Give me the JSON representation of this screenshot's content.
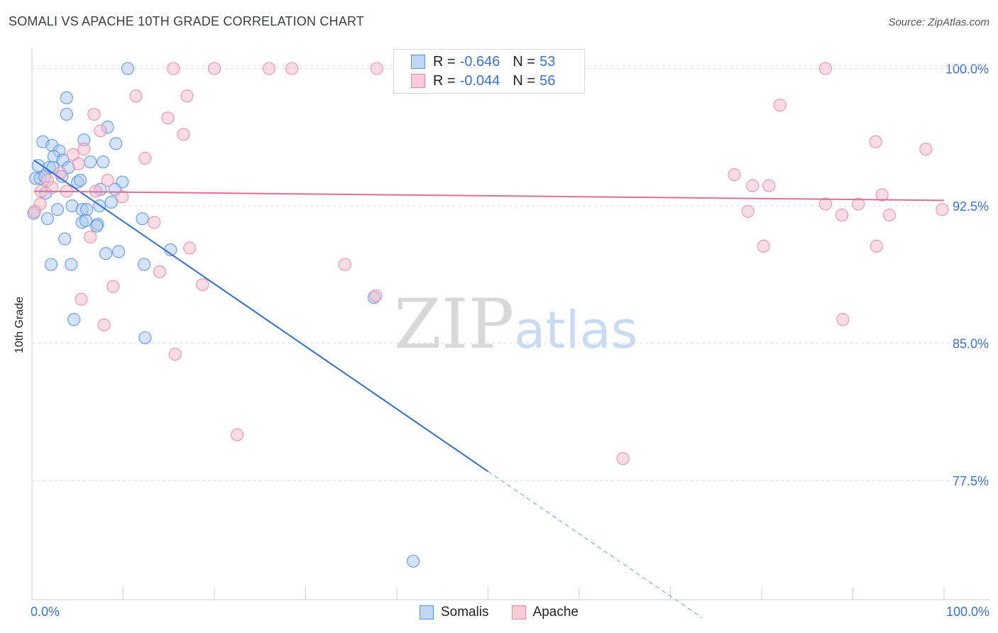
{
  "chart_data": {
    "type": "scatter",
    "title": "SOMALI VS APACHE 10TH GRADE CORRELATION CHART",
    "source": "Source: ZipAtlas.com",
    "xlabel": "",
    "ylabel": "10th Grade",
    "xlim": [
      0,
      100
    ],
    "ylim": [
      71.0,
      101.3
    ],
    "x_tick_labels": [
      "0.0%",
      "100.0%"
    ],
    "y_ticks": [
      {
        "value": 100.0,
        "label": "100.0%"
      },
      {
        "value": 92.5,
        "label": "92.5%"
      },
      {
        "value": 85.0,
        "label": "85.0%"
      },
      {
        "value": 77.5,
        "label": "77.5%"
      }
    ],
    "grid": true,
    "watermark": "ZIPatlas",
    "legend_position": "bottom-center",
    "stats": [
      {
        "r_label": "R =",
        "r_value": "-0.646",
        "n_label": "N =",
        "n_value": "53"
      },
      {
        "r_label": "R =",
        "r_value": "-0.044",
        "n_label": "N =",
        "n_value": "56"
      }
    ],
    "series": [
      {
        "name": "Somalis",
        "color": "#5b8fde",
        "fill": "#aac8f2",
        "trend": {
          "x0": 0.2,
          "y0": 95.0,
          "x1": 50,
          "y1": 78.0,
          "dash_to_x": 73.5,
          "dash_to_y": 70.0
        },
        "points": [
          [
            10.5,
            100.0
          ],
          [
            3.8,
            98.4
          ],
          [
            3.8,
            97.5
          ],
          [
            8.3,
            96.8
          ],
          [
            1.2,
            96.0
          ],
          [
            5.7,
            96.1
          ],
          [
            9.2,
            95.9
          ],
          [
            2.2,
            95.8
          ],
          [
            3.0,
            95.5
          ],
          [
            2.4,
            95.2
          ],
          [
            3.4,
            95.0
          ],
          [
            6.4,
            94.9
          ],
          [
            7.8,
            94.9
          ],
          [
            0.7,
            94.7
          ],
          [
            1.9,
            94.6
          ],
          [
            2.3,
            94.6
          ],
          [
            4.0,
            94.6
          ],
          [
            0.4,
            94.0
          ],
          [
            0.9,
            94.0
          ],
          [
            1.4,
            94.1
          ],
          [
            3.3,
            94.1
          ],
          [
            5.0,
            93.8
          ],
          [
            5.3,
            93.9
          ],
          [
            9.9,
            93.8
          ],
          [
            7.5,
            93.4
          ],
          [
            9.1,
            93.4
          ],
          [
            1.5,
            93.2
          ],
          [
            8.7,
            92.7
          ],
          [
            4.4,
            92.5
          ],
          [
            7.4,
            92.5
          ],
          [
            5.5,
            92.3
          ],
          [
            2.8,
            92.3
          ],
          [
            6.0,
            92.3
          ],
          [
            0.2,
            92.1
          ],
          [
            1.7,
            91.8
          ],
          [
            12.1,
            91.8
          ],
          [
            5.5,
            91.6
          ],
          [
            5.9,
            91.7
          ],
          [
            7.2,
            91.5
          ],
          [
            7.1,
            91.4
          ],
          [
            3.6,
            90.7
          ],
          [
            15.2,
            90.1
          ],
          [
            8.1,
            89.9
          ],
          [
            9.5,
            90.0
          ],
          [
            2.1,
            89.3
          ],
          [
            4.3,
            89.3
          ],
          [
            12.3,
            89.3
          ],
          [
            37.5,
            87.5
          ],
          [
            4.6,
            86.3
          ],
          [
            12.4,
            85.3
          ],
          [
            41.8,
            73.1
          ]
        ]
      },
      {
        "name": "Apache",
        "color": "#e58aa8",
        "fill": "#f6b9cb",
        "trend": {
          "x0": 0.2,
          "y0": 93.3,
          "x1": 100,
          "y1": 92.8
        },
        "points": [
          [
            15.5,
            100.0
          ],
          [
            20.0,
            100.0
          ],
          [
            26.0,
            100.0
          ],
          [
            28.5,
            100.0
          ],
          [
            37.8,
            100.0
          ],
          [
            87.0,
            100.0
          ],
          [
            11.4,
            98.5
          ],
          [
            17.0,
            98.5
          ],
          [
            82.0,
            98.0
          ],
          [
            6.8,
            97.5
          ],
          [
            14.9,
            97.3
          ],
          [
            16.6,
            96.4
          ],
          [
            7.5,
            96.6
          ],
          [
            92.5,
            96.0
          ],
          [
            98.0,
            95.6
          ],
          [
            5.7,
            95.6
          ],
          [
            4.5,
            95.3
          ],
          [
            12.4,
            95.1
          ],
          [
            5.1,
            94.8
          ],
          [
            3.1,
            94.3
          ],
          [
            77.0,
            94.2
          ],
          [
            1.7,
            93.9
          ],
          [
            8.3,
            93.9
          ],
          [
            2.2,
            93.5
          ],
          [
            79.0,
            93.6
          ],
          [
            80.8,
            93.6
          ],
          [
            3.8,
            93.3
          ],
          [
            7.0,
            93.3
          ],
          [
            1.0,
            93.3
          ],
          [
            9.9,
            93.0
          ],
          [
            93.2,
            93.1
          ],
          [
            0.9,
            92.6
          ],
          [
            87.0,
            92.6
          ],
          [
            90.6,
            92.6
          ],
          [
            78.5,
            92.2
          ],
          [
            88.8,
            92.0
          ],
          [
            94.0,
            92.0
          ],
          [
            99.8,
            92.3
          ],
          [
            0.3,
            92.2
          ],
          [
            13.4,
            91.6
          ],
          [
            6.4,
            90.8
          ],
          [
            17.3,
            90.2
          ],
          [
            80.2,
            90.3
          ],
          [
            92.6,
            90.3
          ],
          [
            34.3,
            89.3
          ],
          [
            14.0,
            88.9
          ],
          [
            8.9,
            88.1
          ],
          [
            18.7,
            88.2
          ],
          [
            37.7,
            87.6
          ],
          [
            5.4,
            87.4
          ],
          [
            88.9,
            86.3
          ],
          [
            7.9,
            86.0
          ],
          [
            15.7,
            84.4
          ],
          [
            22.5,
            80.0
          ],
          [
            64.8,
            78.7
          ]
        ]
      }
    ]
  }
}
